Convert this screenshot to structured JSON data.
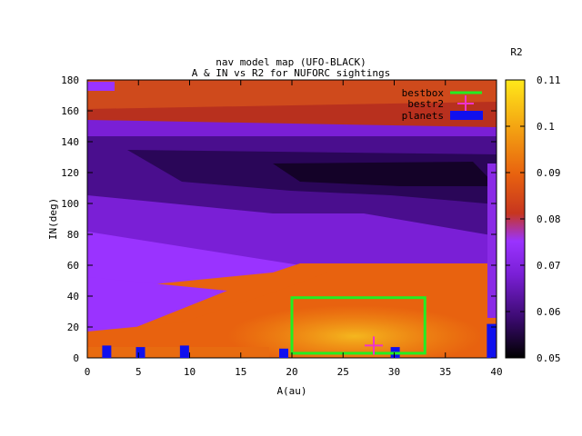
{
  "chart_data": {
    "type": "heatmap",
    "title": "nav model map (UFO-BLACK)",
    "subtitle": "A & IN vs R2 for NUFORC sightings",
    "xlabel": "A(au)",
    "ylabel": "IN(deg)",
    "xlim": [
      0,
      40
    ],
    "ylim": [
      0,
      180
    ],
    "x_ticks": [
      0,
      5,
      10,
      15,
      20,
      25,
      30,
      35,
      40
    ],
    "y_ticks": [
      0,
      20,
      40,
      60,
      80,
      100,
      120,
      140,
      160,
      180
    ],
    "colorbar": {
      "label": "R2",
      "range": [
        0.05,
        0.11
      ],
      "ticks": [
        "0.05",
        "0.06",
        "0.07",
        "0.08",
        "0.09",
        "0.1",
        "0.11"
      ],
      "palette": [
        "#000000",
        "#3a0a6e",
        "#7a1fd6",
        "#9a33ff",
        "#c7361f",
        "#e8620f",
        "#f3a012",
        "#ffe81a"
      ]
    },
    "grid": false,
    "legend_position": "top-right",
    "legend": [
      {
        "label": "bestbox",
        "color": "#22ee22"
      },
      {
        "label": "bestr2",
        "color": "#ee33cc"
      },
      {
        "label": "planets",
        "color": "#1010ee"
      }
    ],
    "bestbox": {
      "x": [
        20,
        33
      ],
      "y": [
        3,
        39
      ]
    },
    "bestr2": {
      "x": 28,
      "y": 8
    },
    "planets": [
      {
        "a": 1.9,
        "in": [
          0,
          8
        ]
      },
      {
        "a": 5.2,
        "in": [
          0,
          7
        ]
      },
      {
        "a": 9.5,
        "in": [
          0,
          8
        ]
      },
      {
        "a": 19.2,
        "in": [
          0,
          6
        ]
      },
      {
        "a": 30.1,
        "in": [
          0,
          7
        ]
      },
      {
        "a": 39.5,
        "in": [
          0,
          22
        ]
      }
    ]
  }
}
